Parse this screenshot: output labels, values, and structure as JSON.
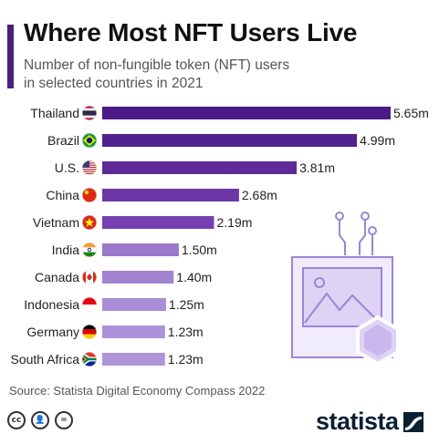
{
  "header": {
    "title": "Where Most NFT Users Live",
    "subtitle_line1": "Number of non-fungible token (NFT) users",
    "subtitle_line2": "in selected countries in 2021"
  },
  "chart_data": {
    "type": "bar",
    "orientation": "horizontal",
    "categories": [
      "Thailand",
      "Brazil",
      "U.S.",
      "China",
      "Vietnam",
      "India",
      "Canada",
      "Indonesia",
      "Germany",
      "South Africa"
    ],
    "values": [
      5.65,
      4.99,
      3.81,
      2.68,
      2.19,
      1.5,
      1.4,
      1.25,
      1.23,
      1.23
    ],
    "value_labels": [
      "5.65m",
      "4.99m",
      "3.81m",
      "2.68m",
      "2.19m",
      "1.50m",
      "1.40m",
      "1.25m",
      "1.23m",
      "1.23m"
    ],
    "flags": [
      "thailand-flag-icon",
      "brazil-flag-icon",
      "us-flag-icon",
      "china-flag-icon",
      "vietnam-flag-icon",
      "india-flag-icon",
      "canada-flag-icon",
      "indonesia-flag-icon",
      "germany-flag-icon",
      "south-africa-flag-icon"
    ],
    "bar_colors": [
      "#4b1a86",
      "#52208f",
      "#5d2a98",
      "#6b37a6",
      "#7640b0",
      "#9a78cc",
      "#a183d1",
      "#a98dd6",
      "#ac92d9",
      "#ae95da"
    ],
    "xlim": [
      0,
      5.65
    ],
    "grid": false,
    "legend": "none"
  },
  "source": "Source: Statista Digital Economy Compass 2022",
  "footer": {
    "license_icons": [
      "cc-icon",
      "attribution-icon",
      "no-derivatives-icon"
    ],
    "brand": "statista"
  },
  "colors": {
    "accent": "#4b1f7e",
    "title": "#111111",
    "subtitle": "#555555",
    "brand": "#0b1f33",
    "decor": "#9b86d6"
  }
}
